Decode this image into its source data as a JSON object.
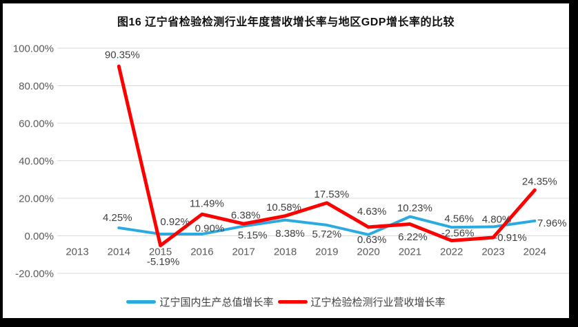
{
  "window": {
    "background": "#000000",
    "chart_background": "#FFFFFF"
  },
  "chart_data": {
    "type": "line",
    "title": "图16 辽宁省检验检测行业年度营收增长率与地区GDP增长率的比较",
    "categories": [
      "2013",
      "2014",
      "2015",
      "2016",
      "2017",
      "2018",
      "2019",
      "2020",
      "2021",
      "2022",
      "2023",
      "2024"
    ],
    "series": [
      {
        "name": "辽宁国内生产总值增长率",
        "color": "#29ABE2",
        "line_width": 4,
        "values": [
          null,
          4.25,
          0.92,
          0.9,
          5.15,
          8.38,
          5.72,
          0.63,
          10.23,
          4.56,
          4.8,
          7.96
        ],
        "label_offsets": [
          [
            0,
            0
          ],
          [
            -2,
            -15
          ],
          [
            21,
            -18
          ],
          [
            11,
            -9
          ],
          [
            13,
            13
          ],
          [
            7,
            19
          ],
          [
            0,
            13
          ],
          [
            5,
            7
          ],
          [
            7,
            -13
          ],
          [
            11,
            -13
          ],
          [
            5,
            -11
          ],
          [
            25,
            3
          ]
        ]
      },
      {
        "name": "辽宁检验检测行业营收增长率",
        "color": "#FF0000",
        "line_width": 5,
        "values": [
          null,
          90.35,
          -5.19,
          11.49,
          6.38,
          10.58,
          17.53,
          4.63,
          6.22,
          -2.56,
          -0.91,
          24.35
        ],
        "label_offsets": [
          [
            0,
            0
          ],
          [
            5,
            -17
          ],
          [
            4,
            23
          ],
          [
            7,
            -16
          ],
          [
            3,
            -13
          ],
          [
            -2,
            -13
          ],
          [
            7,
            -13
          ],
          [
            5,
            -23
          ],
          [
            4,
            18
          ],
          [
            9,
            -11
          ],
          [
            25,
            0
          ],
          [
            7,
            -13
          ]
        ]
      }
    ],
    "y_axis": {
      "min": -20,
      "max": 100,
      "step": 20,
      "tick_format": "0.00%",
      "tick_labels": [
        "100.00%",
        "80.00%",
        "60.00%",
        "40.00%",
        "20.00%",
        "0.00%",
        "-20.00%"
      ]
    },
    "legend_position": "bottom",
    "grid": true,
    "colors": {
      "gridline": "#D9D9D9",
      "axis_text": "#595959",
      "data_label_text": "#404040",
      "title_text": "#111111"
    }
  }
}
